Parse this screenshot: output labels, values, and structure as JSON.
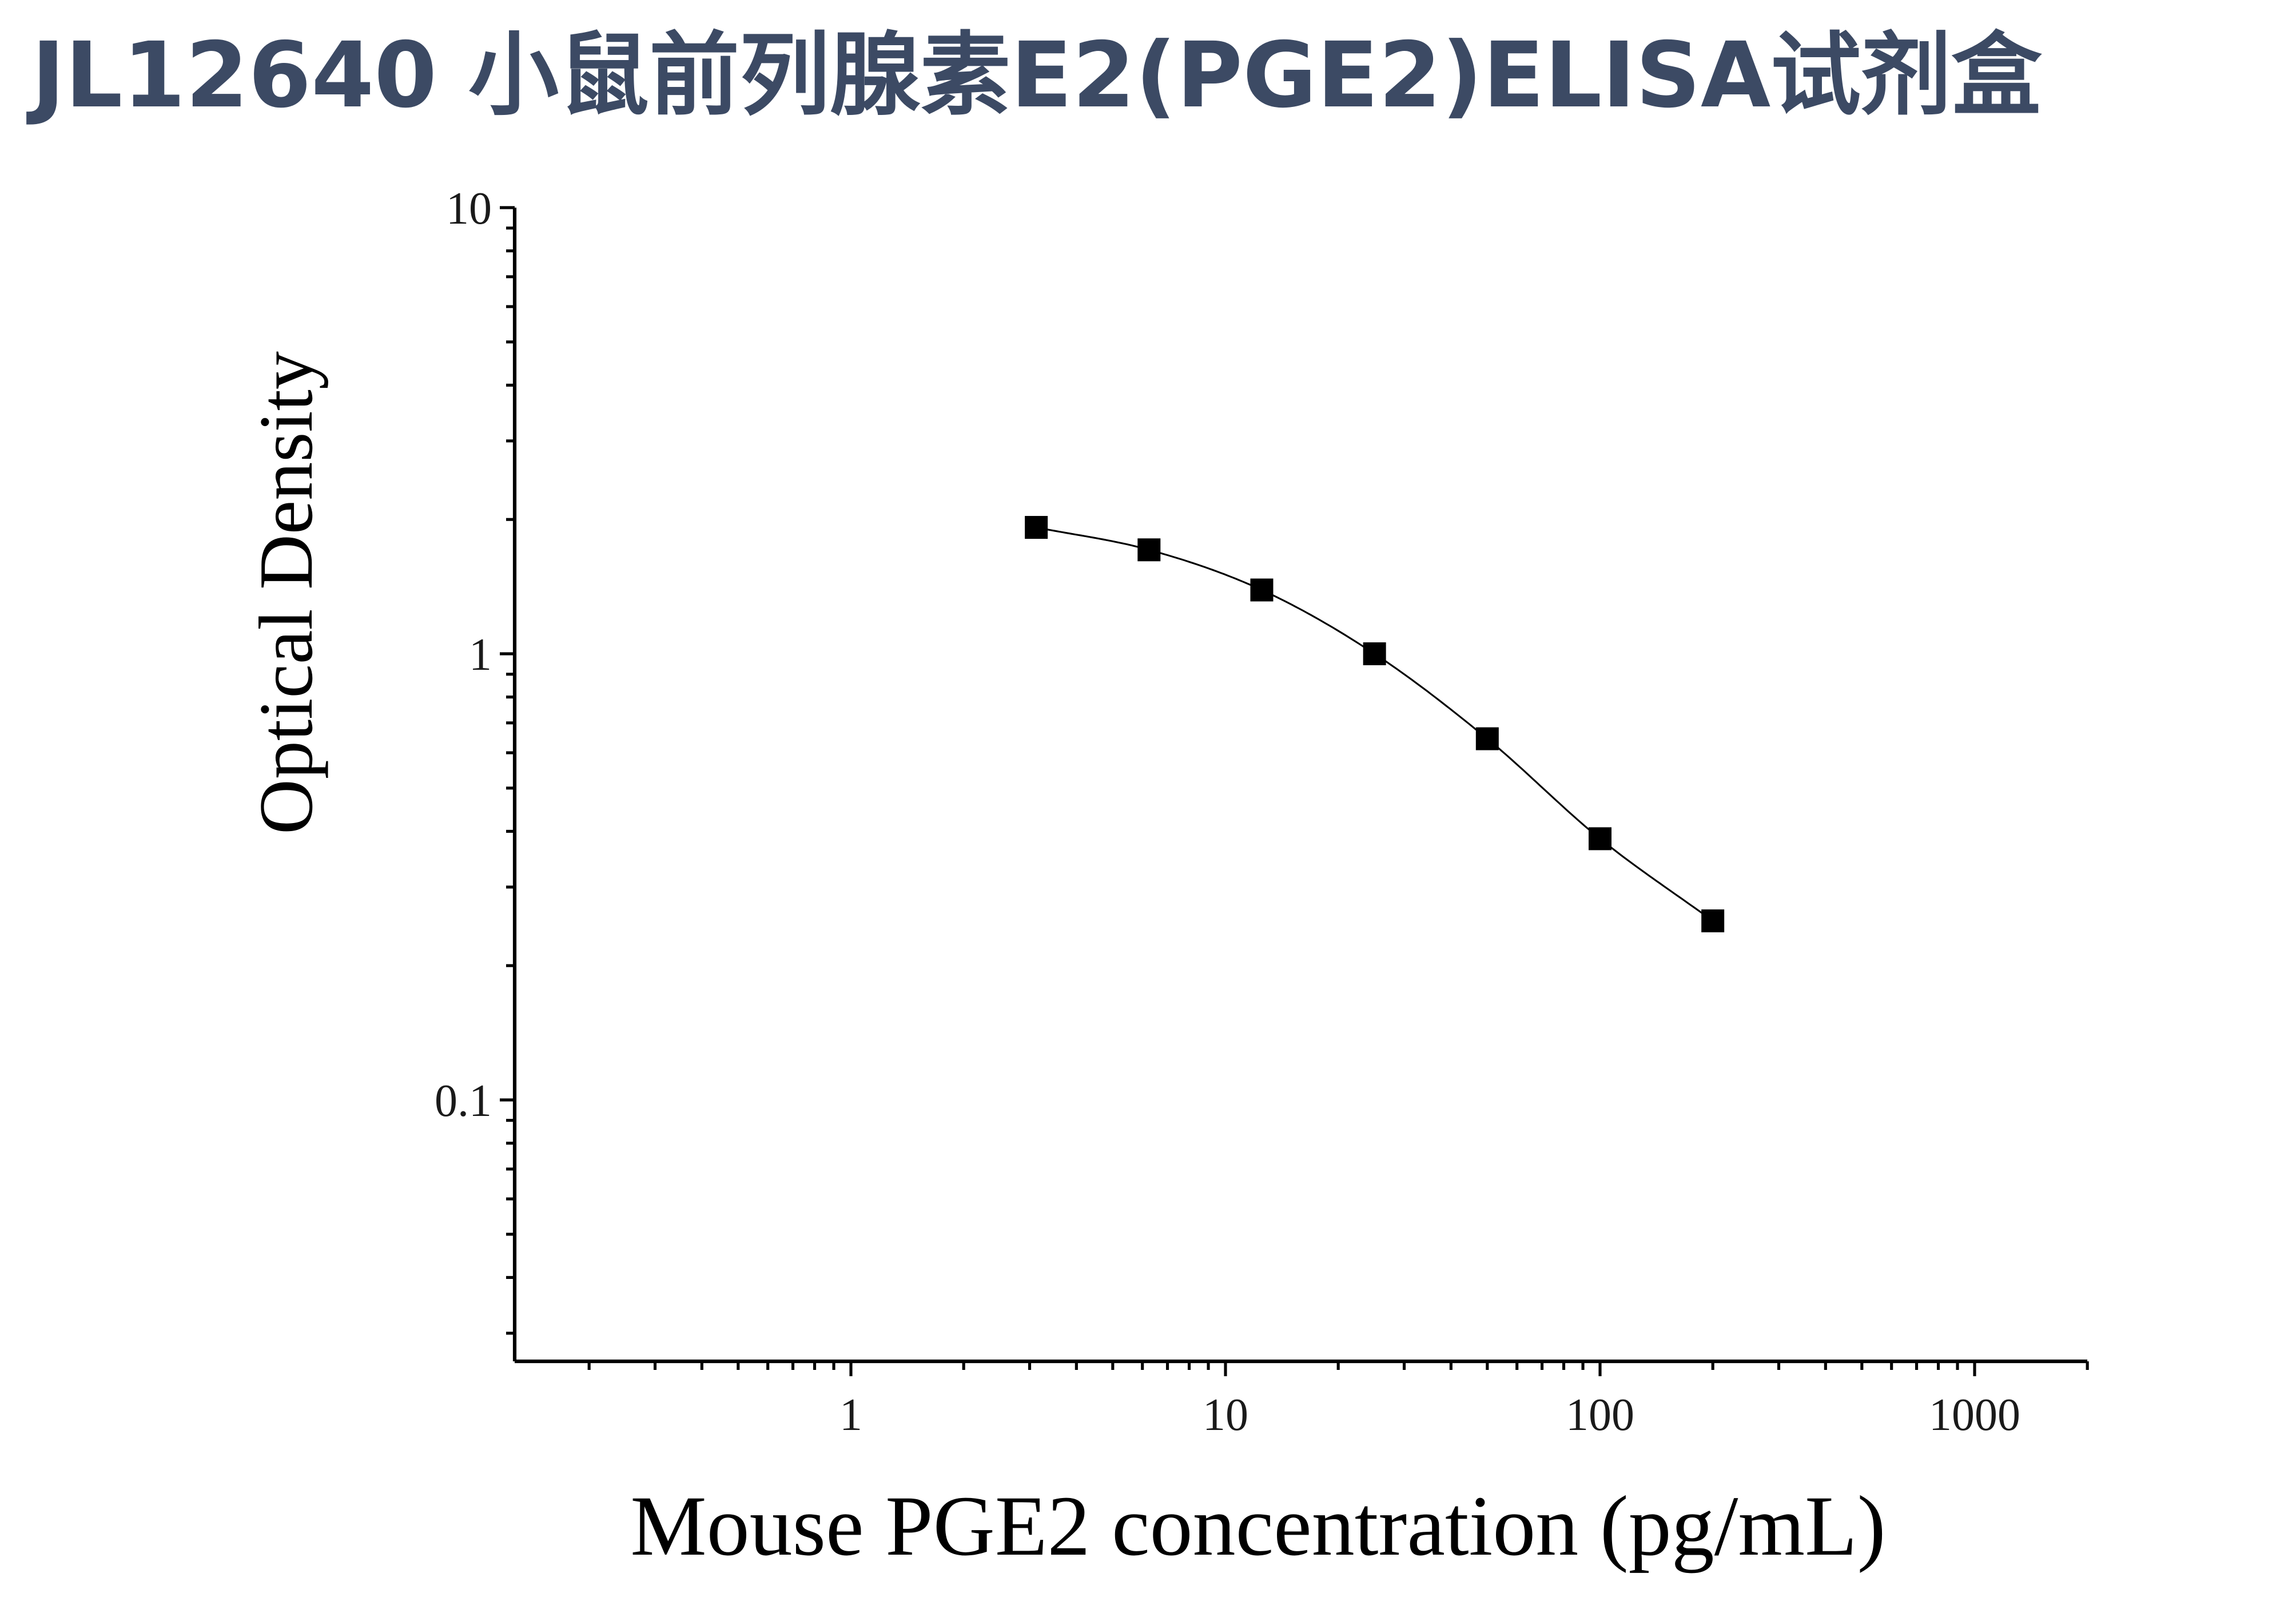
{
  "page": {
    "title": "JL12640 小鼠前列腺素E2(PGE2)ELISA试剂盒"
  },
  "chart_data": {
    "type": "scatter",
    "title": "",
    "xlabel": "Mouse PGE2 concentration (pg/mL)",
    "ylabel": "Optical Density",
    "x_scale": "log",
    "y_scale": "log",
    "xlim": [
      0.12,
      2000
    ],
    "ylim": [
      0.025,
      10
    ],
    "x_ticks": [
      1,
      10,
      100,
      1000
    ],
    "x_tick_labels": [
      "1",
      "10",
      "100",
      "1000"
    ],
    "y_ticks": [
      0.1,
      1,
      10
    ],
    "y_tick_labels": [
      "0.1",
      "1",
      "10"
    ],
    "grid": false,
    "legend": "none",
    "series": [
      {
        "marker": "square",
        "color": "#000000",
        "fit_line": true,
        "x": [
          3.125,
          6.25,
          12.5,
          25,
          50,
          100,
          200
        ],
        "y": [
          1.92,
          1.71,
          1.39,
          1.0,
          0.645,
          0.385,
          0.252
        ]
      }
    ]
  }
}
